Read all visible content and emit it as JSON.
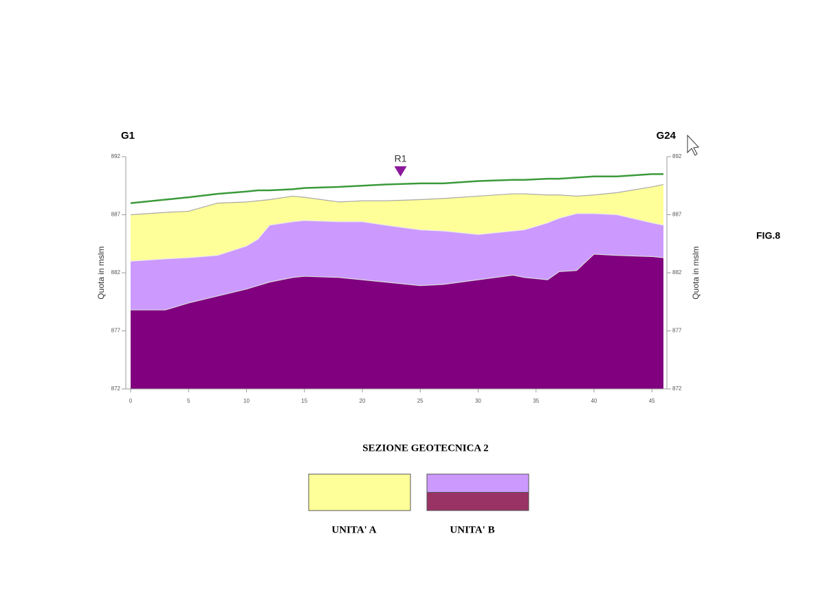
{
  "chart_data": {
    "type": "area",
    "title": "SEZIONE GEOTECNICA  2",
    "ylabel": "Quota in mslm",
    "x": [
      0,
      3,
      5,
      7.5,
      10,
      11,
      12,
      14,
      15,
      18,
      20,
      22,
      25,
      27,
      30,
      33,
      34,
      36,
      37,
      38.5,
      40,
      42,
      45,
      46
    ],
    "series": [
      {
        "color": "#3a9a3a",
        "fill": null,
        "values": [
          888.0,
          888.3,
          888.5,
          888.8,
          889.0,
          889.1,
          889.1,
          889.2,
          889.3,
          889.4,
          889.5,
          889.6,
          889.7,
          889.7,
          889.9,
          890.0,
          890.0,
          890.1,
          890.1,
          890.2,
          890.3,
          890.3,
          890.5,
          890.5
        ]
      },
      {
        "color": "#a8a8a8",
        "fill": "#ffff99",
        "values": [
          887.0,
          887.2,
          887.3,
          888.0,
          888.1,
          888.2,
          888.3,
          888.6,
          888.5,
          888.1,
          888.2,
          888.2,
          888.3,
          888.4,
          888.6,
          888.8,
          888.8,
          888.7,
          888.7,
          888.6,
          888.7,
          888.9,
          889.4,
          889.6
        ]
      },
      {
        "color": "#e8e8e8",
        "fill": "#cc99ff",
        "values": [
          883.0,
          883.2,
          883.3,
          883.5,
          884.3,
          884.9,
          886.1,
          886.4,
          886.5,
          886.4,
          886.4,
          886.1,
          885.7,
          885.6,
          885.3,
          885.6,
          885.7,
          886.3,
          886.7,
          887.1,
          887.1,
          887.0,
          886.3,
          886.1
        ]
      },
      {
        "color": "#d8d8d8",
        "fill": "#800080",
        "values": [
          878.8,
          878.8,
          879.4,
          880.0,
          880.6,
          880.9,
          881.2,
          881.6,
          881.7,
          881.6,
          881.4,
          881.2,
          880.9,
          881.0,
          881.4,
          881.8,
          881.6,
          881.4,
          882.1,
          882.2,
          883.6,
          883.5,
          883.4,
          883.3
        ]
      }
    ],
    "xlim": [
      0,
      46
    ],
    "ylim": [
      872,
      892
    ],
    "xticks": [
      0,
      5,
      10,
      15,
      20,
      25,
      30,
      35,
      40,
      45
    ],
    "yticks": [
      872,
      877,
      882,
      887,
      892
    ],
    "start_label": "G1",
    "end_label": "G24",
    "marker": {
      "text": "R1",
      "x": 23.3,
      "color": "#8b1a9b"
    },
    "legend": [
      {
        "label": "UNITA' A",
        "colors": [
          "#ffff99"
        ]
      },
      {
        "label": "UNITA' B",
        "colors": [
          "#cc99ff",
          "#993366"
        ]
      }
    ]
  },
  "figure_label": "FIG.8"
}
